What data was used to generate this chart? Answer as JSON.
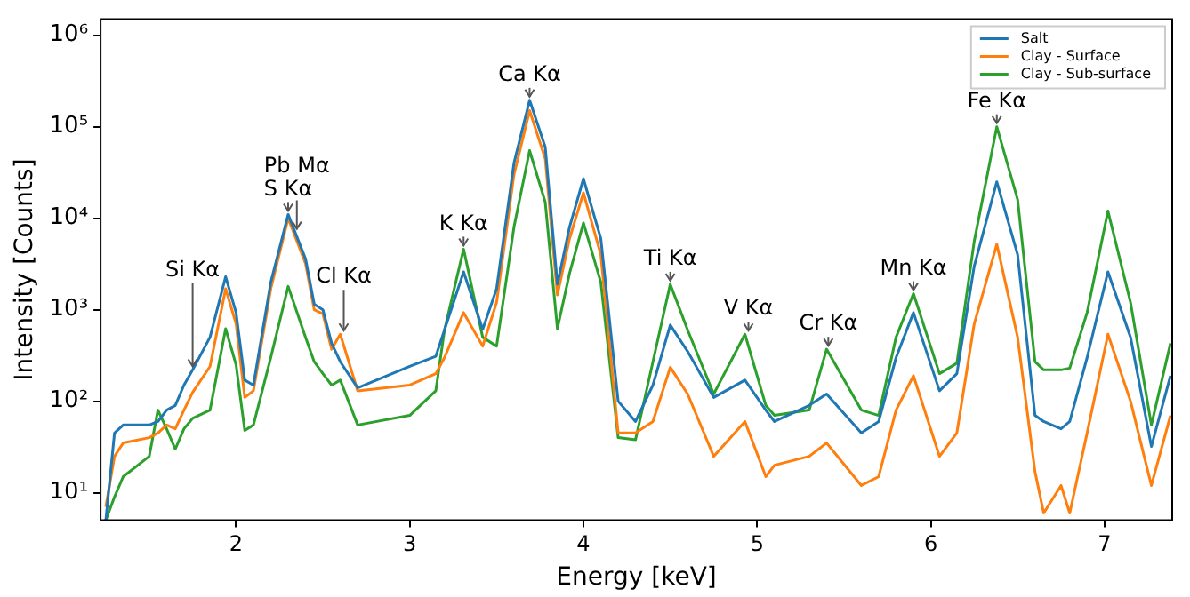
{
  "chart_data": {
    "type": "line",
    "xlabel": "Energy [keV]",
    "ylabel": "Intensity [Counts]",
    "log": "y",
    "xlim": [
      1.22,
      7.39
    ],
    "xticks": [
      2,
      3,
      4,
      5,
      6,
      7
    ],
    "ylim": [
      5,
      1500000
    ],
    "yticks": [
      {
        "value": 10,
        "label": "10¹"
      },
      {
        "value": 100,
        "label": "10²"
      },
      {
        "value": 1000,
        "label": "10³"
      },
      {
        "value": 10000,
        "label": "10⁴"
      },
      {
        "value": 100000,
        "label": "10⁵"
      },
      {
        "value": 1000000,
        "label": "10⁶"
      }
    ],
    "x": [
      1.25,
      1.3,
      1.35,
      1.5,
      1.55,
      1.6,
      1.65,
      1.7,
      1.75,
      1.85,
      1.94,
      2.0,
      2.05,
      2.1,
      2.2,
      2.3,
      2.4,
      2.45,
      2.5,
      2.55,
      2.6,
      2.7,
      3.0,
      3.15,
      3.2,
      3.31,
      3.42,
      3.5,
      3.6,
      3.69,
      3.78,
      3.85,
      3.92,
      4.0,
      4.1,
      4.2,
      4.3,
      4.4,
      4.5,
      4.6,
      4.75,
      4.93,
      5.05,
      5.1,
      5.3,
      5.4,
      5.6,
      5.7,
      5.8,
      5.9,
      6.05,
      6.15,
      6.25,
      6.38,
      6.5,
      6.6,
      6.65,
      6.75,
      6.8,
      6.9,
      7.02,
      7.15,
      7.27,
      7.38
    ],
    "series": [
      {
        "name": "Salt",
        "color": "#1f77b4",
        "values": [
          5,
          45,
          55,
          55,
          60,
          80,
          90,
          150,
          220,
          500,
          2300,
          930,
          170,
          150,
          2000,
          11000,
          3600,
          1150,
          1000,
          430,
          270,
          140,
          240,
          310,
          600,
          2600,
          610,
          1700,
          40000,
          195000,
          60000,
          1900,
          8000,
          27000,
          6000,
          100,
          60,
          150,
          680,
          350,
          110,
          170,
          80,
          60,
          90,
          120,
          45,
          60,
          300,
          930,
          130,
          200,
          3000,
          25000,
          4000,
          70,
          60,
          50,
          60,
          300,
          2600,
          500,
          32,
          190
        ]
      },
      {
        "name": "Clay - Surface",
        "color": "#ff7f0e",
        "values": [
          7,
          25,
          35,
          40,
          45,
          55,
          50,
          80,
          125,
          240,
          1700,
          700,
          110,
          130,
          1700,
          10000,
          3200,
          1000,
          900,
          370,
          540,
          130,
          150,
          200,
          300,
          930,
          400,
          1200,
          30000,
          150000,
          45000,
          1450,
          6000,
          19000,
          4000,
          45,
          45,
          60,
          235,
          120,
          25,
          60,
          15,
          20,
          25,
          35,
          12,
          15,
          80,
          190,
          25,
          45,
          700,
          5200,
          500,
          17,
          6,
          12,
          6,
          45,
          540,
          100,
          12,
          70
        ]
      },
      {
        "name": "Clay - Sub-surface",
        "color": "#2ca02c",
        "values": [
          5,
          9,
          15,
          25,
          80,
          50,
          30,
          50,
          65,
          80,
          620,
          250,
          48,
          55,
          300,
          1800,
          500,
          270,
          200,
          150,
          170,
          55,
          70,
          130,
          600,
          4600,
          500,
          400,
          8000,
          55000,
          15000,
          620,
          2500,
          8900,
          2000,
          40,
          38,
          270,
          1900,
          600,
          120,
          540,
          90,
          70,
          80,
          370,
          80,
          70,
          500,
          1500,
          200,
          260,
          5600,
          100000,
          16000,
          270,
          220,
          220,
          230,
          930,
          12000,
          1200,
          55,
          430
        ]
      }
    ],
    "annotations": [
      {
        "text": "Si Kα",
        "x": 1.75,
        "y": 220
      },
      {
        "text": "S Kα",
        "x": 2.3,
        "y": 11000
      },
      {
        "text": "Pb Mα",
        "x": 2.35,
        "y": 7000
      },
      {
        "text": "Cl Kα",
        "x": 2.62,
        "y": 540
      },
      {
        "text": "K Kα",
        "x": 3.31,
        "y": 4600
      },
      {
        "text": "Ca Kα",
        "x": 3.69,
        "y": 195000
      },
      {
        "text": "Ti Kα",
        "x": 4.5,
        "y": 1900
      },
      {
        "text": "V Kα",
        "x": 4.95,
        "y": 540
      },
      {
        "text": "Cr Kα",
        "x": 5.41,
        "y": 370
      },
      {
        "text": "Mn Kα",
        "x": 5.9,
        "y": 1500
      },
      {
        "text": "Fe Kα",
        "x": 6.38,
        "y": 100000
      }
    ],
    "legend": "top right",
    "grid": false,
    "marker": "none",
    "line_style": "solid"
  }
}
